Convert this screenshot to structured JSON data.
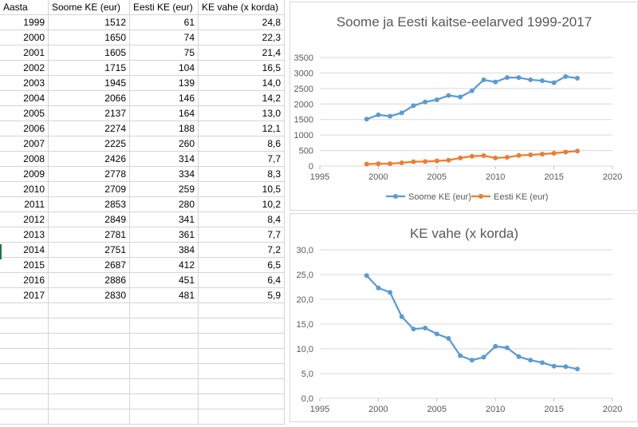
{
  "sheet": {
    "headers": [
      "Aasta",
      "Soome KE (eur)",
      "Eesti KE (eur)",
      "KE vahe (x korda)"
    ],
    "rows": [
      [
        "1999",
        "1512",
        "61",
        "24,8"
      ],
      [
        "2000",
        "1650",
        "74",
        "22,3"
      ],
      [
        "2001",
        "1605",
        "75",
        "21,4"
      ],
      [
        "2002",
        "1715",
        "104",
        "16,5"
      ],
      [
        "2003",
        "1945",
        "139",
        "14,0"
      ],
      [
        "2004",
        "2066",
        "146",
        "14,2"
      ],
      [
        "2005",
        "2137",
        "164",
        "13,0"
      ],
      [
        "2006",
        "2274",
        "188",
        "12,1"
      ],
      [
        "2007",
        "2225",
        "260",
        "8,6"
      ],
      [
        "2008",
        "2426",
        "314",
        "7,7"
      ],
      [
        "2009",
        "2778",
        "334",
        "8,3"
      ],
      [
        "2010",
        "2709",
        "259",
        "10,5"
      ],
      [
        "2011",
        "2853",
        "280",
        "10,2"
      ],
      [
        "2012",
        "2849",
        "341",
        "8,4"
      ],
      [
        "2013",
        "2781",
        "361",
        "7,7"
      ],
      [
        "2014",
        "2751",
        "384",
        "7,2"
      ],
      [
        "2015",
        "2687",
        "412",
        "6,5"
      ],
      [
        "2016",
        "2886",
        "451",
        "6,4"
      ],
      [
        "2017",
        "2830",
        "481",
        "5,9"
      ]
    ]
  },
  "chart_data": [
    {
      "type": "line",
      "title": "Soome ja Eesti kaitse-eelarved 1999-2017",
      "x": [
        1999,
        2000,
        2001,
        2002,
        2003,
        2004,
        2005,
        2006,
        2007,
        2008,
        2009,
        2010,
        2011,
        2012,
        2013,
        2014,
        2015,
        2016,
        2017
      ],
      "series": [
        {
          "name": "Soome KE (eur)",
          "color": "#5b9bd5",
          "values": [
            1512,
            1650,
            1605,
            1715,
            1945,
            2066,
            2137,
            2274,
            2225,
            2426,
            2778,
            2709,
            2853,
            2849,
            2781,
            2751,
            2687,
            2886,
            2830
          ]
        },
        {
          "name": "Eesti KE (eur)",
          "color": "#ed7d31",
          "values": [
            61,
            74,
            75,
            104,
            139,
            146,
            164,
            188,
            260,
            314,
            334,
            259,
            280,
            341,
            361,
            384,
            412,
            451,
            481
          ]
        }
      ],
      "xlim": [
        1995,
        2020
      ],
      "ylim": [
        0,
        3500
      ],
      "xticks": [
        "1995",
        "2000",
        "2005",
        "2010",
        "2015",
        "2020"
      ],
      "yticks": [
        "0",
        "500",
        "1000",
        "1500",
        "2000",
        "2500",
        "3000",
        "3500"
      ],
      "grid": true,
      "legend": "bottom"
    },
    {
      "type": "line",
      "title": "KE vahe (x korda)",
      "x": [
        1999,
        2000,
        2001,
        2002,
        2003,
        2004,
        2005,
        2006,
        2007,
        2008,
        2009,
        2010,
        2011,
        2012,
        2013,
        2014,
        2015,
        2016,
        2017
      ],
      "series": [
        {
          "color": "#5b9bd5",
          "values": [
            24.8,
            22.3,
            21.4,
            16.5,
            14.0,
            14.2,
            13.0,
            12.1,
            8.6,
            7.7,
            8.3,
            10.5,
            10.2,
            8.4,
            7.7,
            7.2,
            6.5,
            6.4,
            5.9
          ]
        }
      ],
      "xlim": [
        1995,
        2020
      ],
      "ylim": [
        0,
        30
      ],
      "xticks": [
        "1995",
        "2000",
        "2005",
        "2010",
        "2015",
        "2020"
      ],
      "yticks": [
        "0,0",
        "5,0",
        "10,0",
        "15,0",
        "20,0",
        "25,0",
        "30,0"
      ],
      "grid": true,
      "legend": "none"
    }
  ]
}
